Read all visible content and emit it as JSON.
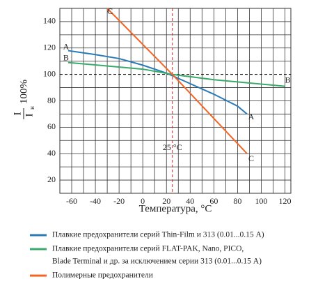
{
  "chart_data": {
    "type": "line",
    "xlabel": "Температура, °C",
    "ylabel": {
      "numerator": "I",
      "denominator": "I",
      "denominator_sub": "н",
      "suffix": "100%"
    },
    "annotation": "25 °C",
    "ref_x": 25,
    "ref_y": 100,
    "xlim": [
      -70,
      125
    ],
    "ylim": [
      10,
      150
    ],
    "xticks": [
      -60,
      -40,
      -20,
      0,
      20,
      40,
      60,
      80,
      100,
      120
    ],
    "yticks": [
      20,
      40,
      60,
      80,
      100,
      120,
      140
    ],
    "xgrid": [
      -70,
      -60,
      -50,
      -40,
      -30,
      -20,
      -10,
      0,
      10,
      20,
      30,
      40,
      50,
      60,
      70,
      80,
      90,
      100,
      110,
      120
    ],
    "ygrid": [
      20,
      30,
      40,
      50,
      60,
      70,
      80,
      90,
      100,
      110,
      120,
      130,
      140
    ],
    "series": [
      {
        "name": [
          "Плавкие предохранители серий Thin-Film и 313 (0.01...0.15 A)"
        ],
        "label": "A",
        "color": "#2a7ab8",
        "x": [
          -63,
          -40,
          -20,
          0,
          20,
          25,
          40,
          60,
          80,
          88
        ],
        "values": [
          118,
          115,
          112,
          107,
          101,
          99,
          93,
          85,
          76,
          70
        ]
      },
      {
        "name": [
          "Плавкие предохранители серий FLAT-PAK, Nano, PICO,",
          "Blade Terminal и др. за исключением серии 313 (0.01...0.15 A)"
        ],
        "label": "B",
        "color": "#3aaa6a",
        "x": [
          -63,
          0,
          25,
          60,
          120
        ],
        "values": [
          109,
          104,
          100,
          96,
          91
        ]
      },
      {
        "name": [
          "Полимерные предохранители"
        ],
        "label": "C",
        "color": "#f26522",
        "x": [
          -30,
          25,
          88
        ],
        "values": [
          150,
          100,
          40
        ]
      }
    ]
  }
}
